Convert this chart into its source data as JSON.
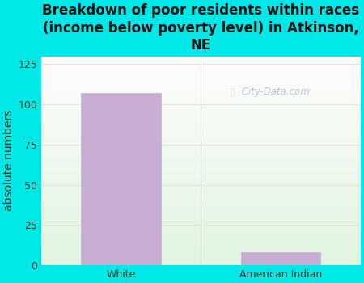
{
  "title": "Breakdown of poor residents within races\n(income below poverty level) in Atkinson,\nNE",
  "categories": [
    "White",
    "American Indian"
  ],
  "values": [
    107,
    8
  ],
  "bar_color": "#c8aed3",
  "bar_edgecolor": "#c8aed3",
  "ylabel": "absolute numbers",
  "ylim": [
    0,
    130
  ],
  "yticks": [
    0,
    25,
    50,
    75,
    100,
    125
  ],
  "background_color": "#00e8e8",
  "plot_bg_color_topleft": "#e8f5e0",
  "plot_bg_color_white": "#f8fff8",
  "title_fontsize": 12,
  "label_fontsize": 10,
  "tick_fontsize": 9,
  "watermark": "City-Data.com",
  "grid_color": "#e0e8d8",
  "tick_color": "#2a3a2a",
  "title_color": "#111111"
}
